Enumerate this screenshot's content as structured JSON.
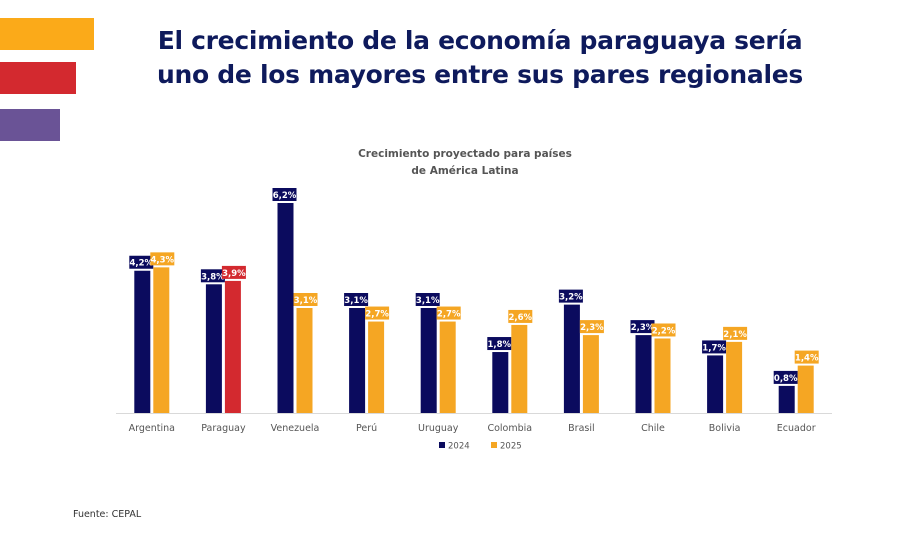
{
  "header": {
    "title_line1": "El crecimiento de la economía paraguaya sería",
    "title_line2": "uno de los mayores entre sus pares regionales"
  },
  "decor": {
    "stripe_colors": [
      "#fbaa19",
      "#d3292f",
      "#6a5396"
    ]
  },
  "chart_data": {
    "type": "bar",
    "title": "Crecimiento proyectado para países de América Latina",
    "title_line1": "Crecimiento proyectado para países",
    "title_line2": "de América Latina",
    "categories": [
      "Argentina",
      "Paraguay",
      "Venezuela",
      "Perú",
      "Uruguay",
      "Colombia",
      "Brasil",
      "Chile",
      "Bolivia",
      "Ecuador"
    ],
    "series": [
      {
        "name": "2024",
        "color": "#0b0b5e",
        "values": [
          4.2,
          3.8,
          6.2,
          3.1,
          3.1,
          1.8,
          3.2,
          2.3,
          1.7,
          0.8
        ],
        "labels": [
          "4,2%",
          "3,8%",
          "6,2%",
          "3,1%",
          "3,1%",
          "1,8%",
          "3,2%",
          "2,3%",
          "1,7%",
          "0,8%"
        ]
      },
      {
        "name": "2025",
        "color": "#f5a623",
        "values": [
          4.3,
          3.9,
          3.1,
          2.7,
          2.7,
          2.6,
          2.3,
          2.2,
          2.1,
          1.4
        ],
        "labels": [
          "4,3%",
          "3,9%",
          "3,1%",
          "2,7%",
          "2,7%",
          "2,6%",
          "2,3%",
          "2,2%",
          "2,1%",
          "1,4%"
        ],
        "highlight": {
          "category": "Paraguay",
          "color": "#d3292f"
        }
      }
    ],
    "xlabel": "",
    "ylabel": "",
    "ylim": [
      0,
      6.2
    ],
    "grid": false,
    "legend": {
      "position": "bottom",
      "entries": [
        "2024",
        "2025"
      ]
    }
  },
  "footer": {
    "source": "Fuente: CEPAL"
  }
}
